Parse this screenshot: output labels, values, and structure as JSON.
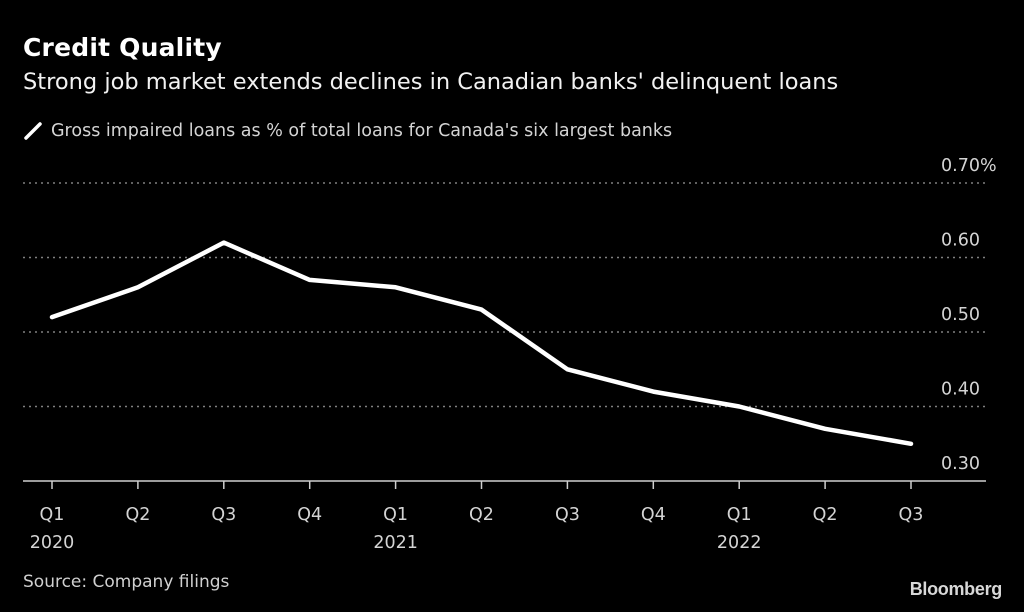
{
  "header": {
    "title": "Credit Quality",
    "subtitle": "Strong job market extends declines in Canadian banks' delinquent loans"
  },
  "legend": {
    "label": "Gross impaired loans as % of total loans for Canada's six largest banks",
    "icon": "line-swatch-icon"
  },
  "footer": {
    "source": "Source: Company filings",
    "brand": "Bloomberg"
  },
  "colors": {
    "background": "#000000",
    "line": "#ffffff",
    "grid": "#808080",
    "text": "#d4d4d4"
  },
  "chart_data": {
    "type": "line",
    "title": "Credit Quality",
    "subtitle": "Strong job market extends declines in Canadian banks' delinquent loans",
    "xlabel": "",
    "ylabel": "",
    "categories": [
      "Q1 2020",
      "Q2 2020",
      "Q3 2020",
      "Q4 2020",
      "Q1 2021",
      "Q2 2021",
      "Q3 2021",
      "Q4 2021",
      "Q1 2022",
      "Q2 2022",
      "Q3 2022"
    ],
    "x_tick_labels": [
      "Q1",
      "Q2",
      "Q3",
      "Q4",
      "Q1",
      "Q2",
      "Q3",
      "Q4",
      "Q1",
      "Q2",
      "Q3"
    ],
    "x_year_labels": [
      "2020",
      "",
      "",
      "",
      "2021",
      "",
      "",
      "",
      "2022",
      "",
      ""
    ],
    "series": [
      {
        "name": "Gross impaired loans as % of total loans for Canada's six largest banks",
        "values": [
          0.52,
          0.56,
          0.62,
          0.57,
          0.56,
          0.53,
          0.45,
          0.42,
          0.4,
          0.37,
          0.35
        ]
      }
    ],
    "ylim": [
      0.3,
      0.7
    ],
    "y_ticks": [
      0.3,
      0.4,
      0.5,
      0.6,
      0.7
    ],
    "y_tick_labels": [
      "0.30",
      "0.40",
      "0.50",
      "0.60",
      "0.70%"
    ],
    "y_axis_side": "right",
    "grid": true,
    "legend_position": "top-left"
  }
}
